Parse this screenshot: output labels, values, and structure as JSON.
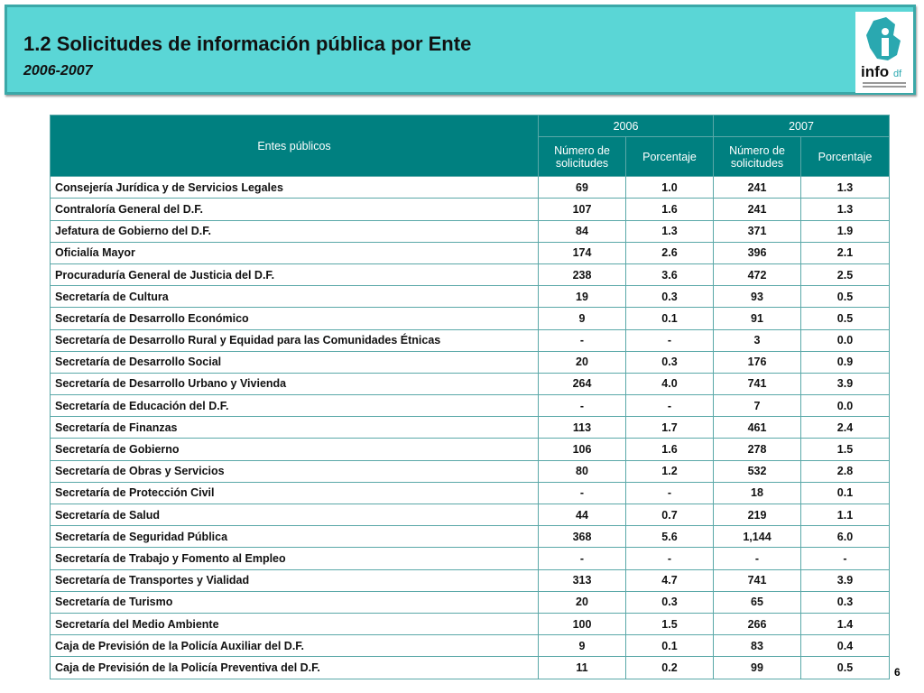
{
  "header": {
    "title": "1.2 Solicitudes de información pública por Ente",
    "subtitle": "2006-2007",
    "logo": {
      "main": "info",
      "suffix": "df"
    }
  },
  "table": {
    "corner": "Entes públicos",
    "years": [
      "2006",
      "2007"
    ],
    "subheaders": [
      "Número de solicitudes",
      "Porcentaje",
      "Número de solicitudes",
      "Porcentaje"
    ],
    "rows": [
      [
        "Consejería Jurídica y de Servicios Legales",
        "69",
        "1.0",
        "241",
        "1.3"
      ],
      [
        "Contraloría General del D.F.",
        "107",
        "1.6",
        "241",
        "1.3"
      ],
      [
        "Jefatura de Gobierno del D.F.",
        "84",
        "1.3",
        "371",
        "1.9"
      ],
      [
        "Oficialía Mayor",
        "174",
        "2.6",
        "396",
        "2.1"
      ],
      [
        "Procuraduría General de Justicia del D.F.",
        "238",
        "3.6",
        "472",
        "2.5"
      ],
      [
        "Secretaría de Cultura",
        "19",
        "0.3",
        "93",
        "0.5"
      ],
      [
        "Secretaría de Desarrollo Económico",
        "9",
        "0.1",
        "91",
        "0.5"
      ],
      [
        "Secretaría de Desarrollo Rural y Equidad para las Comunidades Étnicas",
        "-",
        "-",
        "3",
        "0.0"
      ],
      [
        "Secretaría de Desarrollo Social",
        "20",
        "0.3",
        "176",
        "0.9"
      ],
      [
        "Secretaría de Desarrollo Urbano y Vivienda",
        "264",
        "4.0",
        "741",
        "3.9"
      ],
      [
        "Secretaría de Educación del D.F.",
        "-",
        "-",
        "7",
        "0.0"
      ],
      [
        "Secretaría de Finanzas",
        "113",
        "1.7",
        "461",
        "2.4"
      ],
      [
        "Secretaría de Gobierno",
        "106",
        "1.6",
        "278",
        "1.5"
      ],
      [
        "Secretaría de Obras y Servicios",
        "80",
        "1.2",
        "532",
        "2.8"
      ],
      [
        "Secretaría de Protección Civil",
        "-",
        "-",
        "18",
        "0.1"
      ],
      [
        "Secretaría de Salud",
        "44",
        "0.7",
        "219",
        "1.1"
      ],
      [
        "Secretaría de Seguridad Pública",
        "368",
        "5.6",
        "1,144",
        "6.0"
      ],
      [
        "Secretaría de Trabajo y Fomento al Empleo",
        "-",
        "-",
        "-",
        "-"
      ],
      [
        "Secretaría de Transportes y Vialidad",
        "313",
        "4.7",
        "741",
        "3.9"
      ],
      [
        "Secretaría de Turismo",
        "20",
        "0.3",
        "65",
        "0.3"
      ],
      [
        "Secretaría del Medio Ambiente",
        "100",
        "1.5",
        "266",
        "1.4"
      ],
      [
        "Caja de Previsión de la Policía Auxiliar del D.F.",
        "9",
        "0.1",
        "83",
        "0.4"
      ],
      [
        "Caja de Previsión de la Policía Preventiva del D.F.",
        "11",
        "0.2",
        "99",
        "0.5"
      ]
    ]
  },
  "page_number": "6"
}
